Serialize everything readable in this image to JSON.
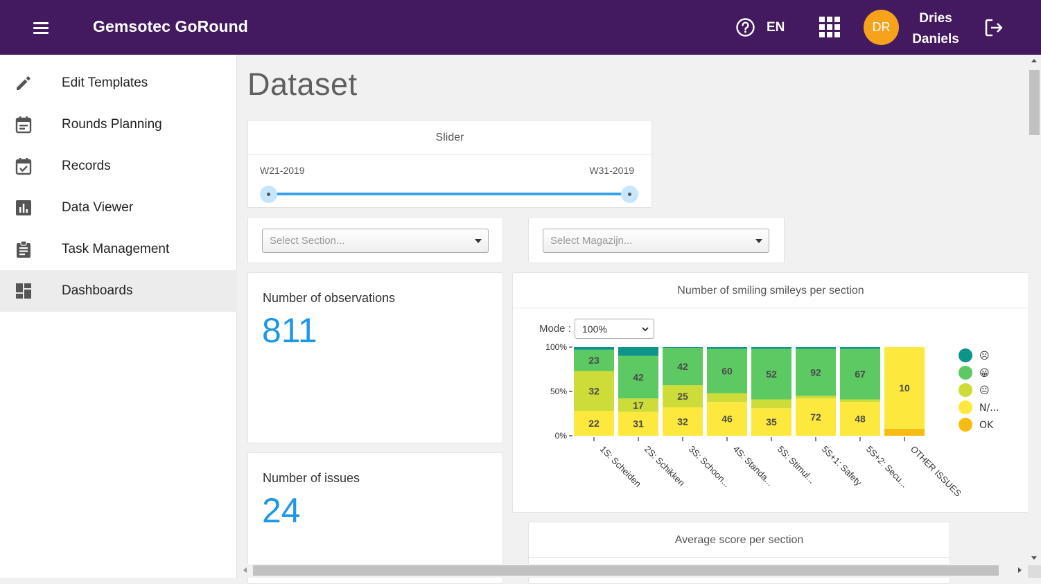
{
  "header": {
    "title": "Gemsotec GoRound",
    "language": "EN",
    "user_initials": "DR",
    "user_first_name": "Dries",
    "user_last_name": "Daniels",
    "background_color": "#43195f",
    "avatar_color": "#f7a21b"
  },
  "sidebar": {
    "items": [
      {
        "label": "Edit Templates",
        "icon": "pencil-icon"
      },
      {
        "label": "Rounds Planning",
        "icon": "calendar-icon"
      },
      {
        "label": "Records",
        "icon": "calendar-check-icon"
      },
      {
        "label": "Data Viewer",
        "icon": "bar-chart-icon"
      },
      {
        "label": "Task Management",
        "icon": "clipboard-icon"
      },
      {
        "label": "Dashboards",
        "icon": "dashboard-icon",
        "active": true
      }
    ]
  },
  "main": {
    "title": "Dataset",
    "slider": {
      "title": "Slider",
      "min_label": "W21-2019",
      "max_label": "W31-2019",
      "accent_color": "#36a3ee"
    },
    "section_select": {
      "placeholder": "Select Section..."
    },
    "magazijn_select": {
      "placeholder": "Select Magazijn..."
    },
    "observations": {
      "label": "Number of observations",
      "value": "811"
    },
    "issues": {
      "label": "Number of issues",
      "value": "24"
    },
    "smileys_chart": {
      "title": "Number of smiling smileys per section",
      "mode_label": "Mode :",
      "mode_value": "100%"
    },
    "avg_chart": {
      "title": "Average score per section"
    }
  },
  "chart_data": {
    "type": "bar",
    "stacked": true,
    "title": "Number of smiling smileys per section",
    "ylabel": "",
    "xlabel": "",
    "ylim": [
      0,
      100
    ],
    "y_ticks": [
      "0%",
      "50%",
      "100%"
    ],
    "categories": [
      "1S: Scheiden",
      "2S: Schikken",
      "3S: Schoon...",
      "4S: Standa...",
      "5S: Stimul...",
      "5S+1: Safety",
      "5S+2: Secu...",
      "OTHER ISSUES"
    ],
    "legend_position": "right",
    "series": [
      {
        "name": "OK",
        "color": "#f8bb10",
        "values": [
          0,
          0,
          0,
          0,
          0,
          0,
          0,
          8
        ],
        "labels": [
          "",
          "",
          "",
          "",
          "",
          "",
          "",
          ""
        ]
      },
      {
        "name": "N/...",
        "color": "#fde93e",
        "values": [
          28,
          27,
          32,
          38,
          31,
          42,
          38,
          92
        ],
        "labels": [
          "22",
          "31",
          "32",
          "46",
          "35",
          "72",
          "48",
          "10"
        ]
      },
      {
        "name": "😐",
        "color": "#cddc39",
        "values": [
          45,
          15,
          25,
          10,
          10,
          3,
          3,
          0
        ],
        "labels": [
          "32",
          "17",
          "25",
          "",
          "",
          "",
          "",
          ""
        ]
      },
      {
        "name": "😀",
        "color": "#5cc963",
        "values": [
          24,
          48,
          42,
          50,
          57,
          53,
          57,
          0
        ],
        "labels": [
          "23",
          "42",
          "42",
          "60",
          "52",
          "92",
          "67",
          ""
        ]
      },
      {
        "name": "☹",
        "color": "#0e9488",
        "values": [
          3,
          10,
          1,
          2,
          2,
          2,
          2,
          0
        ],
        "labels": [
          "",
          "",
          "",
          "",
          "",
          "",
          "",
          ""
        ]
      }
    ]
  }
}
